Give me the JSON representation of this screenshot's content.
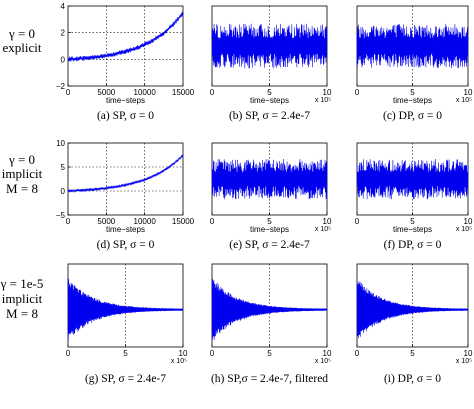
{
  "row_labels": [
    [
      "γ = 0",
      "explicit"
    ],
    [
      "γ = 0",
      "implicit",
      "M = 8"
    ],
    [
      "γ = 1e-5",
      "implicit",
      "M = 8"
    ]
  ],
  "chart_data": [
    {
      "type": "line",
      "panel": "a",
      "caption": "(a) SP, σ = 0",
      "xlabel": "time−steps",
      "x_multiplier": "",
      "xlim": [
        0,
        15000
      ],
      "ylim": [
        -2,
        4
      ],
      "xticks": [
        "0",
        "5000",
        "10000",
        "15000"
      ],
      "yticks": [
        "−2",
        "0",
        "2",
        "4"
      ],
      "kind": "growth",
      "growth_end": 3.5,
      "band": 0.12,
      "grid": true
    },
    {
      "type": "line",
      "panel": "b",
      "caption": "(b) SP, σ = 2.4e-7",
      "xlabel": "time−steps",
      "x_multiplier": "x 10⁵",
      "xlim": [
        0,
        10
      ],
      "xticks": [
        "0",
        "5",
        "10"
      ],
      "yticks": [],
      "kind": "noise",
      "grid": true
    },
    {
      "type": "line",
      "panel": "c",
      "caption": "(c) DP, σ = 0",
      "xlabel": "time−steps",
      "x_multiplier": "x 10⁵",
      "xlim": [
        0,
        10
      ],
      "xticks": [
        "0",
        "5",
        "10"
      ],
      "yticks": [],
      "kind": "noise",
      "grid": true
    },
    {
      "type": "line",
      "panel": "d",
      "caption": "(d) SP, σ = 0",
      "xlabel": "time−steps",
      "x_multiplier": "",
      "xlim": [
        0,
        15000
      ],
      "ylim": [
        -5,
        10
      ],
      "xticks": [
        "0",
        "5000",
        "10000",
        "15000"
      ],
      "yticks": [
        "−5",
        "0",
        "5",
        "10"
      ],
      "kind": "growth",
      "growth_end": 7.5,
      "band": 0.2,
      "grid": true
    },
    {
      "type": "line",
      "panel": "e",
      "caption": "(e) SP, σ = 2.4e-7",
      "xlabel": "time−steps",
      "x_multiplier": "x 10⁵",
      "xlim": [
        0,
        10
      ],
      "xticks": [
        "0",
        "5",
        "10"
      ],
      "yticks": [],
      "kind": "noise",
      "grid": true
    },
    {
      "type": "line",
      "panel": "f",
      "caption": "(f) DP, σ = 0",
      "xlabel": "time−steps",
      "x_multiplier": "x 10⁵",
      "xlim": [
        0,
        10
      ],
      "xticks": [
        "0",
        "5",
        "10"
      ],
      "yticks": [],
      "kind": "noise",
      "grid": true
    },
    {
      "type": "line",
      "panel": "g",
      "caption": "(g) SP, σ = 2.4e-7",
      "xlabel": "",
      "x_multiplier": "x 10⁵",
      "xlim": [
        0,
        10
      ],
      "xticks": [
        "0",
        "5",
        "10"
      ],
      "yticks": [],
      "kind": "decay",
      "grid": true
    },
    {
      "type": "line",
      "panel": "h",
      "caption": "(h) SP,σ = 2.4e-7, filtered",
      "xlabel": "",
      "x_multiplier": "x 10⁵",
      "xlim": [
        0,
        10
      ],
      "xticks": [
        "0",
        "5",
        "10"
      ],
      "yticks": [],
      "kind": "decay",
      "grid": true
    },
    {
      "type": "line",
      "panel": "i",
      "caption": "(i) DP, σ = 0",
      "xlabel": "",
      "x_multiplier": "x 10⁵",
      "xlim": [
        0,
        10
      ],
      "xticks": [
        "0",
        "5",
        "10"
      ],
      "yticks": [],
      "kind": "decay",
      "grid": true
    }
  ]
}
